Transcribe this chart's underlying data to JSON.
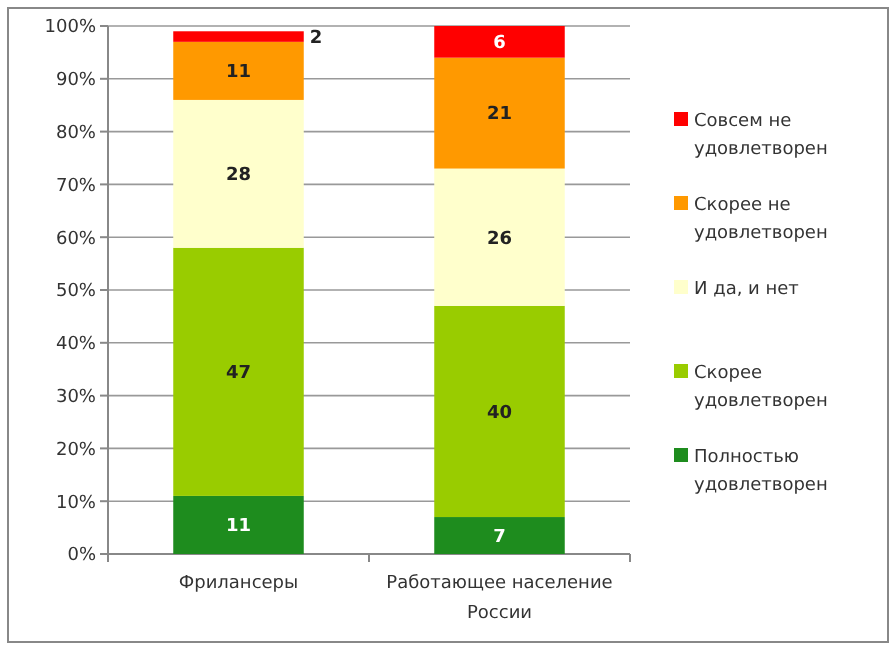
{
  "chart_data": {
    "type": "bar",
    "stacked": true,
    "categories": [
      "Фрилансеры",
      "Работающее население России"
    ],
    "series": [
      {
        "name": "Полностью удовлетворен",
        "color": "#1e8c1e",
        "values": [
          11,
          7
        ]
      },
      {
        "name": "Скорее удовлетворен",
        "color": "#99cc00",
        "values": [
          47,
          40
        ]
      },
      {
        "name": "И да, и нет",
        "color": "#ffffcc",
        "values": [
          28,
          26
        ]
      },
      {
        "name": "Скорее не удовлетворен",
        "color": "#ff9900",
        "values": [
          11,
          21
        ]
      },
      {
        "name": "Совсем не удовлетворен",
        "color": "#ff0000",
        "values": [
          2,
          6
        ]
      }
    ],
    "ylim": [
      0,
      100
    ],
    "yticks": [
      {
        "value": 0,
        "label": "0%"
      },
      {
        "value": 10,
        "label": "10%"
      },
      {
        "value": 20,
        "label": "20%"
      },
      {
        "value": 30,
        "label": "30%"
      },
      {
        "value": 40,
        "label": "40%"
      },
      {
        "value": 50,
        "label": "50%"
      },
      {
        "value": 60,
        "label": "60%"
      },
      {
        "value": 70,
        "label": "70%"
      },
      {
        "value": 80,
        "label": "80%"
      },
      {
        "value": 90,
        "label": "90%"
      },
      {
        "value": 100,
        "label": "100%"
      }
    ],
    "grid": "y",
    "legend": "right",
    "data_labels": true
  }
}
